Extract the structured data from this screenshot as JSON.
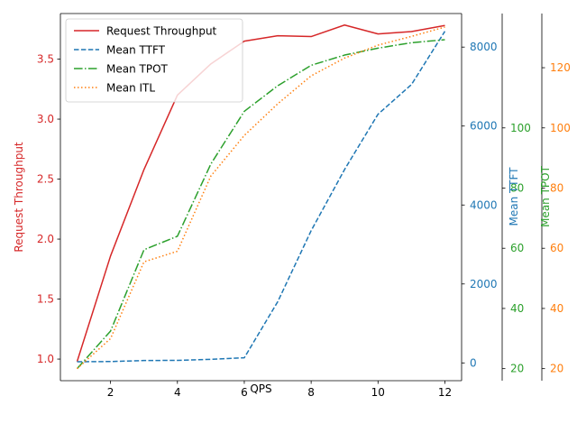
{
  "chart_data": {
    "type": "line",
    "xlabel": "QPS",
    "x": [
      1,
      2,
      3,
      4,
      5,
      6,
      7,
      8,
      9,
      10,
      11,
      12
    ],
    "xlim": [
      0.5,
      12.5
    ],
    "xticks": [
      2,
      4,
      6,
      8,
      10,
      12
    ],
    "axes": {
      "left": {
        "label": "Request Throughput",
        "color": "#d62728",
        "ylim": [
          0.82,
          3.88
        ],
        "ticks": [
          1.0,
          1.5,
          2.0,
          2.5,
          3.0,
          3.5
        ],
        "tick_labels": [
          "1.0",
          "1.5",
          "2.0",
          "2.5",
          "3.0",
          "3.5"
        ]
      },
      "right1": {
        "label": "Mean TTFT",
        "color": "#1f77b4",
        "ylim": [
          -450,
          8850
        ],
        "ticks": [
          0,
          2000,
          4000,
          6000,
          8000
        ],
        "tick_labels": [
          "0",
          "2000",
          "4000",
          "6000",
          "8000"
        ]
      },
      "right2": {
        "label": "Mean TPOT",
        "color": "#2ca02c",
        "ylim": [
          16,
          138
        ],
        "ticks": [
          20,
          40,
          60,
          80,
          100
        ],
        "tick_labels": [
          "20",
          "40",
          "60",
          "80",
          "100"
        ]
      },
      "right3": {
        "label": "Mean ITL",
        "color": "#ff7f0e",
        "ylim": [
          16,
          138
        ],
        "ticks": [
          20,
          40,
          60,
          80,
          100,
          120
        ],
        "tick_labels": [
          "20",
          "40",
          "60",
          "80",
          "100",
          "120"
        ]
      }
    },
    "series": [
      {
        "name": "Request Throughput",
        "axis": "left",
        "color": "#d62728",
        "style": "solid",
        "values": [
          0.98,
          1.86,
          2.58,
          3.2,
          3.46,
          3.65,
          3.695,
          3.688,
          3.784,
          3.71,
          3.73,
          3.78
        ]
      },
      {
        "name": "Mean TTFT",
        "axis": "right1",
        "color": "#1f77b4",
        "style": "dashed",
        "values": [
          30,
          35,
          60,
          65,
          90,
          130,
          1550,
          3350,
          4900,
          6300,
          7050,
          8400
        ]
      },
      {
        "name": "Mean TPOT",
        "axis": "right2",
        "color": "#2ca02c",
        "style": "dashdot",
        "values": [
          20,
          32.5,
          59.5,
          64,
          88,
          105.5,
          114,
          120.8,
          124.2,
          126.5,
          128.3,
          129.3
        ]
      },
      {
        "name": "Mean ITL",
        "axis": "right3",
        "color": "#ff7f0e",
        "style": "dotted",
        "values": [
          20,
          30,
          55.5,
          59,
          84,
          97.5,
          108,
          117.3,
          123.2,
          127.5,
          130.4,
          133.5
        ]
      }
    ],
    "legend": "top-left",
    "grid": false
  }
}
